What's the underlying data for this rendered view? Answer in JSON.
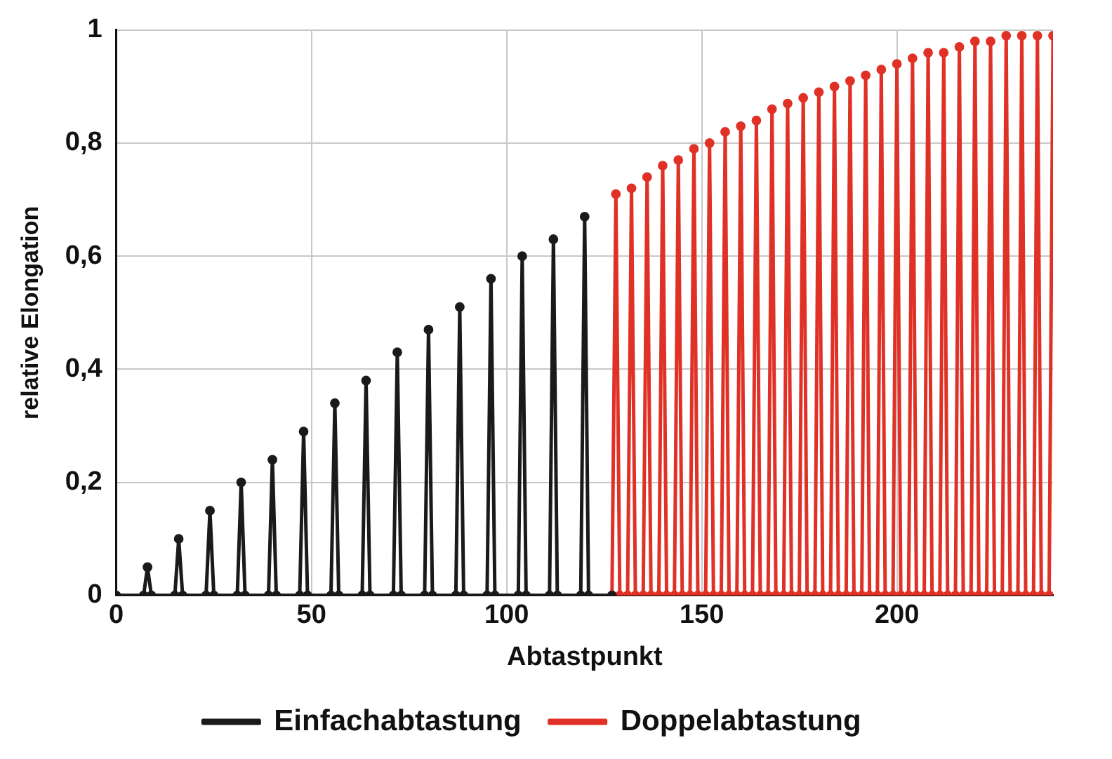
{
  "chart_data": {
    "type": "line",
    "xlabel": "Abtastpunkt",
    "ylabel": "relative Elongation",
    "xlim": [
      0,
      240
    ],
    "xticks": [
      0,
      50,
      100,
      150,
      200
    ],
    "ylim": [
      0,
      1
    ],
    "yticks": [
      0,
      {
        "value": 0.2,
        "label": "0,2"
      },
      {
        "value": 0.4,
        "label": "0,4"
      },
      {
        "value": 0.6,
        "label": "0,6"
      },
      {
        "value": 0.8,
        "label": "0,8"
      },
      1
    ],
    "grid": true,
    "legend": "bottom",
    "marker": "circle",
    "line_style": "solid",
    "series": [
      {
        "name": "Einfachabtastung",
        "color": "#1a1a1a",
        "x": [
          0,
          7,
          8,
          9,
          15,
          16,
          17,
          23,
          24,
          25,
          31,
          32,
          33,
          39,
          40,
          41,
          47,
          48,
          49,
          55,
          56,
          57,
          63,
          64,
          65,
          71,
          72,
          73,
          79,
          80,
          81,
          87,
          88,
          89,
          95,
          96,
          97,
          103,
          104,
          105,
          111,
          112,
          113,
          119,
          120,
          121,
          127
        ],
        "values": [
          0,
          0,
          0.05,
          0,
          0,
          0.1,
          0,
          0,
          0.15,
          0,
          0,
          0.2,
          0,
          0,
          0.24,
          0,
          0,
          0.29,
          0,
          0,
          0.34,
          0,
          0,
          0.38,
          0,
          0,
          0.43,
          0,
          0,
          0.47,
          0,
          0,
          0.51,
          0,
          0,
          0.56,
          0,
          0,
          0.6,
          0,
          0,
          0.63,
          0,
          0,
          0.67,
          0,
          0
        ]
      },
      {
        "name": "Doppelabtastung",
        "color": "#e03127",
        "x": [
          127,
          128,
          129,
          131,
          132,
          133,
          135,
          136,
          137,
          139,
          140,
          141,
          143,
          144,
          145,
          147,
          148,
          149,
          151,
          152,
          153,
          155,
          156,
          157,
          159,
          160,
          161,
          163,
          164,
          165,
          167,
          168,
          169,
          171,
          172,
          173,
          175,
          176,
          177,
          179,
          180,
          181,
          183,
          184,
          185,
          187,
          188,
          189,
          191,
          192,
          193,
          195,
          196,
          197,
          199,
          200,
          201,
          203,
          204,
          205,
          207,
          208,
          209,
          211,
          212,
          213,
          215,
          216,
          217,
          219,
          220,
          221,
          223,
          224,
          225,
          227,
          228,
          229,
          231,
          232,
          233,
          235,
          236,
          237,
          239,
          240
        ],
        "values": [
          0,
          0.71,
          0,
          0,
          0.72,
          0,
          0,
          0.74,
          0,
          0,
          0.76,
          0,
          0,
          0.77,
          0,
          0,
          0.79,
          0,
          0,
          0.8,
          0,
          0,
          0.82,
          0,
          0,
          0.83,
          0,
          0,
          0.84,
          0,
          0,
          0.86,
          0,
          0,
          0.87,
          0,
          0,
          0.88,
          0,
          0,
          0.89,
          0,
          0,
          0.9,
          0,
          0,
          0.91,
          0,
          0,
          0.92,
          0,
          0,
          0.93,
          0,
          0,
          0.94,
          0,
          0,
          0.95,
          0,
          0,
          0.96,
          0,
          0,
          0.96,
          0,
          0,
          0.97,
          0,
          0,
          0.98,
          0,
          0,
          0.98,
          0,
          0,
          0.99,
          0,
          0,
          0.99,
          0,
          0,
          0.99,
          0,
          0,
          0.99
        ]
      }
    ]
  }
}
